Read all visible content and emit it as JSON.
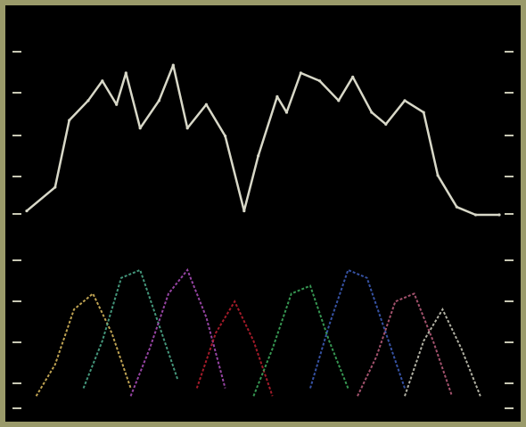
{
  "colors": {
    "background": "#000000",
    "frame": "#9a9a6a",
    "tick": "#c8c8b4",
    "upper_trace": "#d8d8c8",
    "lower_traces": [
      "#e0c060",
      "#50b090",
      "#b050c0",
      "#c02030",
      "#40b060",
      "#4060c0",
      "#c06080",
      "#d0d0c0"
    ]
  },
  "chart_data": {
    "type": "line",
    "title": "",
    "xlabel": "",
    "ylabel": "",
    "legend": "none",
    "grid": false,
    "x_range": [
      0,
      100
    ],
    "y_range": [
      0,
      100
    ],
    "upper_trace": {
      "x": [
        0,
        6,
        9,
        13,
        16,
        19,
        21,
        24,
        28,
        31,
        34,
        38,
        42,
        46,
        49,
        53,
        55,
        58,
        62,
        66,
        69,
        73,
        76,
        80,
        84,
        87,
        91,
        95,
        100
      ],
      "y": [
        51,
        57,
        74,
        79,
        84,
        78,
        86,
        72,
        79,
        88,
        72,
        78,
        70,
        51,
        65,
        80,
        76,
        86,
        84,
        79,
        85,
        76,
        73,
        79,
        76,
        60,
        52,
        50,
        50
      ]
    },
    "lower_traces": [
      {
        "x": [
          2,
          6,
          10,
          14,
          18,
          22
        ],
        "y": [
          4,
          12,
          26,
          30,
          20,
          6
        ]
      },
      {
        "x": [
          12,
          16,
          20,
          24,
          28,
          32
        ],
        "y": [
          6,
          18,
          34,
          36,
          22,
          8
        ]
      },
      {
        "x": [
          22,
          26,
          30,
          34,
          38,
          42
        ],
        "y": [
          4,
          16,
          30,
          36,
          24,
          6
        ]
      },
      {
        "x": [
          36,
          40,
          44,
          48,
          52
        ],
        "y": [
          6,
          20,
          28,
          18,
          4
        ]
      },
      {
        "x": [
          48,
          52,
          56,
          60,
          64,
          68
        ],
        "y": [
          4,
          16,
          30,
          32,
          18,
          6
        ]
      },
      {
        "x": [
          60,
          64,
          68,
          72,
          76,
          80
        ],
        "y": [
          6,
          22,
          36,
          34,
          20,
          6
        ]
      },
      {
        "x": [
          70,
          74,
          78,
          82,
          86,
          90
        ],
        "y": [
          4,
          14,
          28,
          30,
          18,
          4
        ]
      },
      {
        "x": [
          80,
          84,
          88,
          92,
          96
        ],
        "y": [
          4,
          18,
          26,
          16,
          4
        ]
      }
    ]
  }
}
